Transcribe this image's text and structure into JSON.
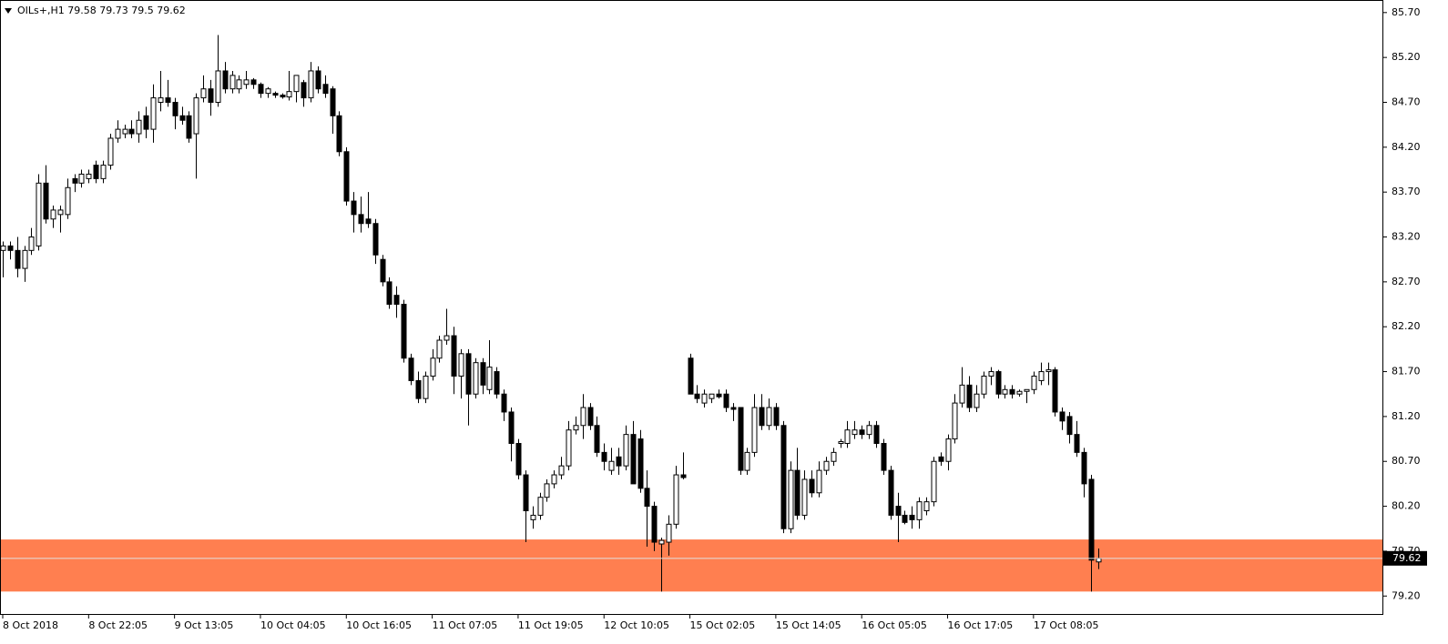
{
  "chart_data": {
    "type": "candlestick",
    "symbol": "OILs+,H1",
    "ylim": [
      79.0,
      85.84
    ],
    "yticks": [
      {
        "value": 85.7,
        "label": "85.70"
      },
      {
        "value": 85.2,
        "label": "85.20"
      },
      {
        "value": 84.7,
        "label": "84.70"
      },
      {
        "value": 84.2,
        "label": "84.20"
      },
      {
        "value": 83.7,
        "label": "83.70"
      },
      {
        "value": 83.2,
        "label": "83.20"
      },
      {
        "value": 82.7,
        "label": "82.70"
      },
      {
        "value": 82.2,
        "label": "82.20"
      },
      {
        "value": 81.7,
        "label": "81.70"
      },
      {
        "value": 81.2,
        "label": "81.20"
      },
      {
        "value": 80.7,
        "label": "80.70"
      },
      {
        "value": 80.2,
        "label": "80.20"
      },
      {
        "value": 79.7,
        "label": "79.70"
      },
      {
        "value": 79.2,
        "label": "79.20"
      }
    ],
    "bull_color": "#ffffff",
    "bear_color": "#000000",
    "zone": {
      "from": 79.83,
      "to": 79.25,
      "color": "#ff7f50"
    },
    "categories": [
      "8 Oct 2018",
      null,
      null,
      null,
      null,
      null,
      null,
      null,
      null,
      null,
      null,
      null,
      "8 Oct 22:05",
      null,
      null,
      null,
      null,
      null,
      null,
      null,
      null,
      null,
      null,
      null,
      "9 Oct 13:05",
      null,
      null,
      null,
      null,
      null,
      null,
      null,
      null,
      null,
      null,
      null,
      "10 Oct 04:05",
      null,
      null,
      null,
      null,
      null,
      null,
      null,
      null,
      null,
      null,
      null,
      "10 Oct 16:05",
      null,
      null,
      null,
      null,
      null,
      null,
      null,
      null,
      null,
      null,
      null,
      "11 Oct 07:05",
      null,
      null,
      null,
      null,
      null,
      null,
      null,
      null,
      null,
      null,
      null,
      "11 Oct 19:05",
      null,
      null,
      null,
      null,
      null,
      null,
      null,
      null,
      null,
      null,
      null,
      "12 Oct 10:05",
      null,
      null,
      null,
      null,
      null,
      null,
      null,
      null,
      null,
      null,
      null,
      "15 Oct 02:05",
      null,
      null,
      null,
      null,
      null,
      null,
      null,
      null,
      null,
      null,
      null,
      "15 Oct 14:05",
      null,
      null,
      null,
      null,
      null,
      null,
      null,
      null,
      null,
      null,
      null,
      "16 Oct 05:05",
      null,
      null,
      null,
      null,
      null,
      null,
      null,
      null,
      null,
      null,
      null,
      "16 Oct 17:05",
      null,
      null,
      null,
      null,
      null,
      null,
      null,
      null,
      null,
      null,
      null,
      "17 Oct 08:05",
      null,
      null,
      null,
      null,
      null,
      null,
      null,
      null,
      null
    ],
    "ohlc": [
      [
        83.05,
        83.15,
        82.75,
        83.1
      ],
      [
        83.1,
        83.15,
        82.95,
        83.05
      ],
      [
        83.05,
        83.2,
        82.75,
        82.85
      ],
      [
        82.85,
        83.1,
        82.7,
        83.05
      ],
      [
        83.05,
        83.3,
        83.0,
        83.2
      ],
      [
        83.1,
        83.9,
        83.05,
        83.8
      ],
      [
        83.8,
        84.0,
        83.35,
        83.4
      ],
      [
        83.4,
        83.55,
        83.3,
        83.5
      ],
      [
        83.45,
        83.55,
        83.25,
        83.5
      ],
      [
        83.45,
        83.85,
        83.4,
        83.75
      ],
      [
        83.85,
        83.9,
        83.7,
        83.8
      ],
      [
        83.8,
        83.95,
        83.75,
        83.9
      ],
      [
        83.85,
        83.95,
        83.8,
        83.9
      ],
      [
        84.0,
        84.05,
        83.8,
        83.85
      ],
      [
        83.85,
        84.05,
        83.8,
        84.0
      ],
      [
        84.0,
        84.35,
        83.95,
        84.3
      ],
      [
        84.3,
        84.5,
        84.25,
        84.4
      ],
      [
        84.35,
        84.45,
        84.3,
        84.4
      ],
      [
        84.4,
        84.5,
        84.3,
        84.35
      ],
      [
        84.35,
        84.6,
        84.25,
        84.5
      ],
      [
        84.55,
        84.65,
        84.3,
        84.4
      ],
      [
        84.4,
        84.9,
        84.25,
        84.75
      ],
      [
        84.7,
        85.05,
        84.6,
        84.75
      ],
      [
        84.75,
        84.95,
        84.65,
        84.7
      ],
      [
        84.7,
        84.75,
        84.4,
        84.55
      ],
      [
        84.55,
        84.65,
        84.45,
        84.5
      ],
      [
        84.55,
        84.6,
        84.25,
        84.3
      ],
      [
        84.35,
        84.8,
        83.85,
        84.75
      ],
      [
        84.75,
        85.0,
        84.7,
        84.85
      ],
      [
        84.85,
        84.95,
        84.55,
        84.7
      ],
      [
        84.7,
        85.45,
        84.65,
        85.05
      ],
      [
        85.05,
        85.15,
        84.8,
        84.85
      ],
      [
        84.85,
        85.05,
        84.8,
        85.0
      ],
      [
        84.85,
        85.0,
        84.8,
        84.95
      ],
      [
        84.9,
        85.05,
        84.85,
        84.95
      ],
      [
        84.95,
        84.97,
        84.85,
        84.9
      ],
      [
        84.9,
        84.92,
        84.75,
        84.8
      ],
      [
        84.8,
        84.87,
        84.75,
        84.85
      ],
      [
        84.8,
        84.82,
        84.75,
        84.78
      ],
      [
        84.78,
        84.8,
        84.74,
        84.76
      ],
      [
        84.76,
        85.05,
        84.72,
        84.82
      ],
      [
        84.82,
        85.0,
        84.7,
        85.0
      ],
      [
        84.92,
        84.95,
        84.65,
        84.75
      ],
      [
        84.75,
        85.15,
        84.7,
        85.05
      ],
      [
        85.05,
        85.1,
        84.8,
        84.85
      ],
      [
        84.9,
        85.0,
        84.75,
        84.8
      ],
      [
        84.85,
        84.88,
        84.35,
        84.55
      ],
      [
        84.55,
        84.6,
        84.1,
        84.15
      ],
      [
        84.15,
        84.2,
        83.55,
        83.6
      ],
      [
        83.6,
        83.7,
        83.25,
        83.45
      ],
      [
        83.45,
        83.65,
        83.25,
        83.35
      ],
      [
        83.4,
        83.7,
        83.3,
        83.35
      ],
      [
        83.35,
        83.4,
        82.9,
        83.0
      ],
      [
        82.95,
        83.0,
        82.65,
        82.7
      ],
      [
        82.7,
        82.75,
        82.4,
        82.45
      ],
      [
        82.55,
        82.65,
        82.3,
        82.45
      ],
      [
        82.45,
        82.5,
        81.8,
        81.85
      ],
      [
        81.85,
        81.9,
        81.55,
        81.6
      ],
      [
        81.6,
        81.7,
        81.35,
        81.4
      ],
      [
        81.4,
        81.7,
        81.35,
        81.65
      ],
      [
        81.65,
        81.95,
        81.6,
        81.85
      ],
      [
        81.85,
        82.1,
        81.8,
        82.05
      ],
      [
        82.05,
        82.4,
        82.0,
        82.1
      ],
      [
        82.1,
        82.2,
        81.45,
        81.65
      ],
      [
        81.65,
        81.95,
        81.4,
        81.9
      ],
      [
        81.9,
        81.95,
        81.1,
        81.45
      ],
      [
        81.45,
        81.85,
        81.4,
        81.8
      ],
      [
        81.8,
        81.85,
        81.45,
        81.55
      ],
      [
        81.5,
        82.05,
        81.45,
        81.75
      ],
      [
        81.7,
        81.75,
        81.4,
        81.45
      ],
      [
        81.45,
        81.5,
        81.15,
        81.25
      ],
      [
        81.25,
        81.3,
        80.7,
        80.9
      ],
      [
        80.9,
        80.95,
        80.5,
        80.55
      ],
      [
        80.55,
        80.6,
        79.8,
        80.15
      ],
      [
        80.05,
        80.2,
        79.95,
        80.1
      ],
      [
        80.1,
        80.35,
        80.05,
        80.3
      ],
      [
        80.3,
        80.5,
        80.25,
        80.45
      ],
      [
        80.45,
        80.6,
        80.4,
        80.55
      ],
      [
        80.55,
        80.75,
        80.5,
        80.65
      ],
      [
        80.65,
        81.15,
        80.6,
        81.05
      ],
      [
        81.05,
        81.2,
        81.0,
        81.1
      ],
      [
        81.1,
        81.45,
        80.95,
        81.3
      ],
      [
        81.3,
        81.35,
        81.05,
        81.1
      ],
      [
        81.1,
        81.2,
        80.75,
        80.8
      ],
      [
        80.8,
        80.9,
        80.6,
        80.7
      ],
      [
        80.6,
        80.85,
        80.55,
        80.7
      ],
      [
        80.75,
        80.85,
        80.55,
        80.65
      ],
      [
        80.65,
        81.1,
        80.6,
        81.0
      ],
      [
        81.0,
        81.15,
        80.45,
        80.45
      ],
      [
        80.95,
        81.05,
        80.35,
        80.4
      ],
      [
        80.4,
        80.6,
        79.75,
        80.2
      ],
      [
        80.2,
        80.25,
        79.7,
        79.8
      ],
      [
        79.78,
        79.85,
        79.25,
        79.82
      ],
      [
        79.8,
        80.1,
        79.65,
        80.0
      ],
      [
        80.0,
        80.65,
        79.95,
        80.55
      ],
      [
        80.55,
        80.8,
        80.5,
        80.52
      ],
      [
        81.85,
        81.9,
        81.45,
        81.45
      ],
      [
        81.45,
        81.55,
        81.35,
        81.4
      ],
      [
        81.35,
        81.5,
        81.3,
        81.45
      ],
      [
        81.4,
        81.45,
        81.35,
        81.45
      ],
      [
        81.45,
        81.5,
        81.4,
        81.42
      ],
      [
        81.45,
        81.5,
        81.25,
        81.3
      ],
      [
        81.3,
        81.35,
        81.15,
        81.28
      ],
      [
        81.3,
        81.3,
        80.55,
        80.6
      ],
      [
        80.6,
        80.85,
        80.55,
        80.8
      ],
      [
        80.8,
        81.45,
        80.75,
        81.3
      ],
      [
        81.3,
        81.45,
        81.05,
        81.1
      ],
      [
        81.1,
        81.4,
        81.05,
        81.3
      ],
      [
        81.3,
        81.35,
        81.05,
        81.1
      ],
      [
        81.1,
        81.15,
        79.9,
        79.95
      ],
      [
        79.95,
        80.7,
        79.9,
        80.6
      ],
      [
        80.6,
        80.85,
        80.05,
        80.1
      ],
      [
        80.1,
        80.6,
        80.05,
        80.5
      ],
      [
        80.5,
        80.6,
        80.3,
        80.35
      ],
      [
        80.35,
        80.7,
        80.3,
        80.6
      ],
      [
        80.6,
        80.75,
        80.55,
        80.7
      ],
      [
        80.7,
        80.85,
        80.65,
        80.8
      ],
      [
        80.9,
        80.95,
        80.85,
        80.92
      ],
      [
        80.9,
        81.15,
        80.85,
        81.05
      ],
      [
        81.0,
        81.15,
        80.95,
        81.05
      ],
      [
        81.05,
        81.1,
        80.95,
        81.0
      ],
      [
        81.0,
        81.15,
        80.95,
        81.1
      ],
      [
        81.1,
        81.15,
        80.85,
        80.9
      ],
      [
        80.9,
        80.95,
        80.55,
        80.6
      ],
      [
        80.6,
        80.65,
        80.05,
        80.1
      ],
      [
        80.2,
        80.35,
        79.8,
        80.1
      ],
      [
        80.1,
        80.15,
        80.0,
        80.02
      ],
      [
        80.1,
        80.2,
        79.95,
        80.05
      ],
      [
        80.05,
        80.3,
        79.95,
        80.25
      ],
      [
        80.15,
        80.3,
        80.1,
        80.25
      ],
      [
        80.25,
        80.75,
        80.2,
        80.7
      ],
      [
        80.75,
        80.8,
        80.65,
        80.7
      ],
      [
        80.7,
        81.0,
        80.6,
        80.95
      ],
      [
        80.95,
        81.45,
        80.9,
        81.35
      ],
      [
        81.35,
        81.75,
        81.3,
        81.55
      ],
      [
        81.55,
        81.65,
        81.25,
        81.3
      ],
      [
        81.3,
        81.55,
        81.25,
        81.45
      ],
      [
        81.45,
        81.7,
        81.4,
        81.65
      ],
      [
        81.65,
        81.75,
        81.55,
        81.7
      ],
      [
        81.7,
        81.72,
        81.4,
        81.45
      ],
      [
        81.45,
        81.55,
        81.4,
        81.5
      ],
      [
        81.5,
        81.55,
        81.4,
        81.45
      ],
      [
        81.45,
        81.5,
        81.42,
        81.48
      ],
      [
        81.48,
        81.5,
        81.35,
        81.5
      ],
      [
        81.5,
        81.7,
        81.45,
        81.65
      ],
      [
        81.6,
        81.8,
        81.55,
        81.7
      ],
      [
        81.7,
        81.8,
        81.55,
        81.72
      ],
      [
        81.72,
        81.75,
        81.2,
        81.25
      ],
      [
        81.25,
        81.3,
        81.05,
        81.15
      ],
      [
        81.2,
        81.25,
        80.9,
        81.0
      ],
      [
        81.0,
        81.15,
        80.75,
        80.8
      ],
      [
        80.8,
        80.85,
        80.3,
        80.45
      ],
      [
        80.5,
        80.55,
        79.25,
        79.6
      ],
      [
        79.58,
        79.73,
        79.5,
        79.62
      ]
    ]
  }
}
